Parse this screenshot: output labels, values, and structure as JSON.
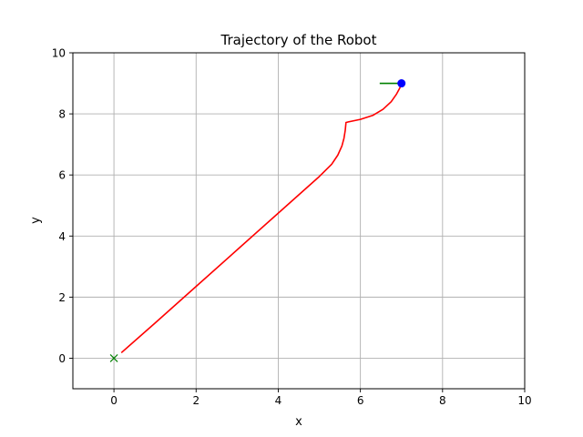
{
  "chart_data": {
    "type": "line",
    "title": "Trajectory of the Robot",
    "xlabel": "x",
    "ylabel": "y",
    "xlim": [
      -1,
      10
    ],
    "ylim": [
      -1,
      10
    ],
    "xticks": [
      0,
      2,
      4,
      6,
      8,
      10
    ],
    "yticks": [
      0,
      2,
      4,
      6,
      8,
      10
    ],
    "grid": true,
    "series": [
      {
        "type": "line",
        "color": "#ff0000",
        "x": [
          0.18,
          1.0,
          2.0,
          3.0,
          4.0,
          5.0,
          5.3,
          5.45,
          5.55,
          5.6,
          5.63,
          5.65,
          6.0,
          6.3,
          6.55,
          6.75,
          6.88,
          6.96,
          7.0
        ],
        "y": [
          0.18,
          1.15,
          2.35,
          3.55,
          4.75,
          5.95,
          6.35,
          6.65,
          6.95,
          7.2,
          7.45,
          7.72,
          7.82,
          7.95,
          8.15,
          8.4,
          8.65,
          8.85,
          9.0
        ]
      },
      {
        "type": "line",
        "color": "#008000",
        "x": [
          6.47,
          7.0
        ],
        "y": [
          9.0,
          9.0
        ]
      }
    ],
    "markers": [
      {
        "shape": "x",
        "color": "#008000",
        "x": 0.0,
        "y": 0.0
      },
      {
        "shape": "circle",
        "color": "#0000ff",
        "x": 7.0,
        "y": 9.0
      }
    ]
  }
}
